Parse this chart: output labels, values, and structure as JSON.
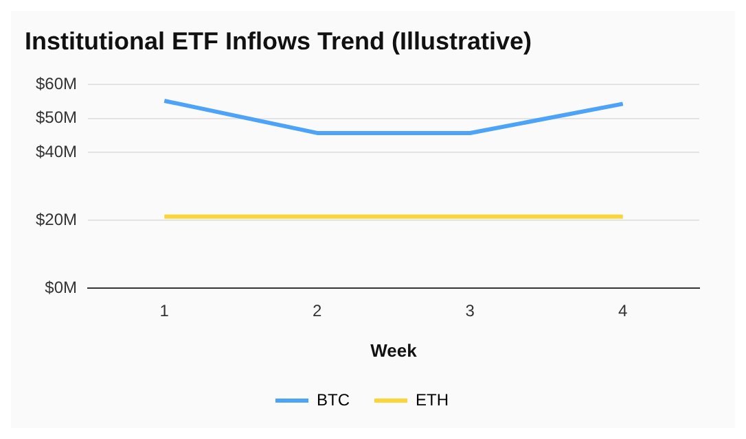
{
  "chart_data": {
    "type": "line",
    "title": "Institutional ETF Inflows Trend (Illustrative)",
    "xlabel": "Week",
    "categories": [
      "1",
      "2",
      "3",
      "4"
    ],
    "series": [
      {
        "name": "BTC",
        "color": "#4da3f7",
        "values": [
          55.2,
          45.7,
          45.7,
          54.3
        ]
      },
      {
        "name": "ETH",
        "color": "#fbd437",
        "values": [
          21.1,
          21.1,
          21.1,
          21.1
        ]
      }
    ],
    "ylim": [
      0,
      60
    ],
    "yticks": [
      {
        "value": 0,
        "label": "$0M"
      },
      {
        "value": 20,
        "label": "$20M"
      },
      {
        "value": 40,
        "label": "$40M"
      },
      {
        "value": 50,
        "label": "$50M"
      },
      {
        "value": 60,
        "label": "$60M"
      }
    ],
    "grid": "y",
    "legend": "bottom",
    "marker": "none",
    "line_style": "solid"
  }
}
